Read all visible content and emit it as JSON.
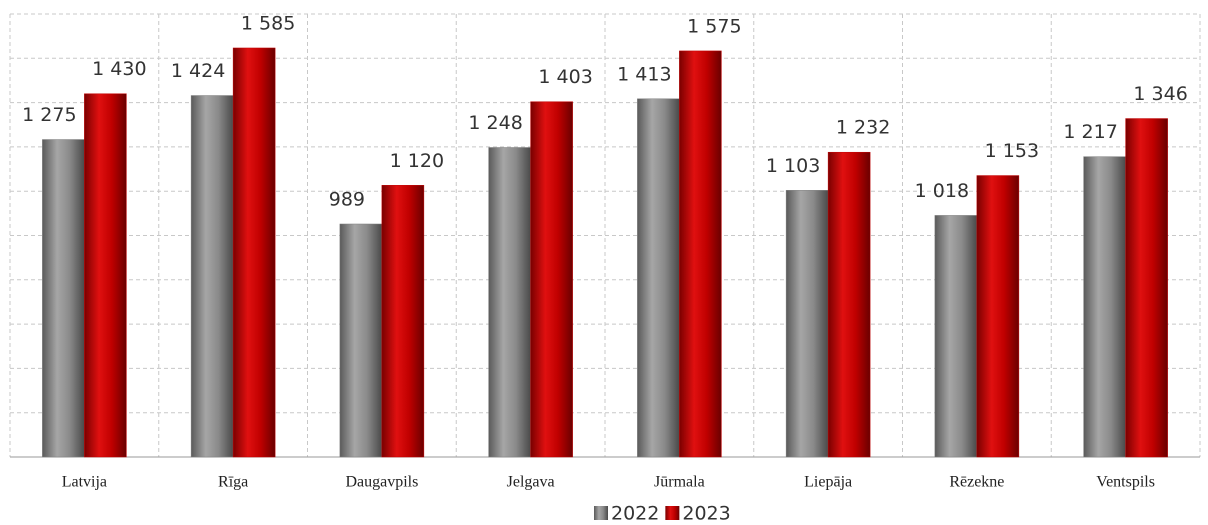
{
  "chart_data": {
    "type": "bar",
    "categories": [
      "Latvija",
      "Rīga",
      "Daugavpils",
      "Jelgava",
      "Jūrmala",
      "Liepāja",
      "Rēzekne",
      "Ventspils"
    ],
    "series": [
      {
        "name": "2022",
        "color": "#808080",
        "values": [
          1275,
          1424,
          989,
          1248,
          1413,
          1103,
          1018,
          1217
        ],
        "value_labels": [
          "1 275",
          "1 424",
          "989",
          "1 248",
          "1 413",
          "1 103",
          "1 018",
          "1 217"
        ]
      },
      {
        "name": "2023",
        "color": "#c00000",
        "values": [
          1430,
          1585,
          1120,
          1403,
          1575,
          1232,
          1153,
          1346
        ],
        "value_labels": [
          "1 430",
          "1 585",
          "1 120",
          "1 403",
          "1 575",
          "1 232",
          "1 153",
          "1 346"
        ]
      }
    ],
    "ylim": [
      200,
      1700
    ],
    "yticks": [
      200,
      350,
      500,
      650,
      800,
      950,
      1100,
      1250,
      1400,
      1550,
      1700
    ],
    "grid": true,
    "legend": "bottom"
  }
}
